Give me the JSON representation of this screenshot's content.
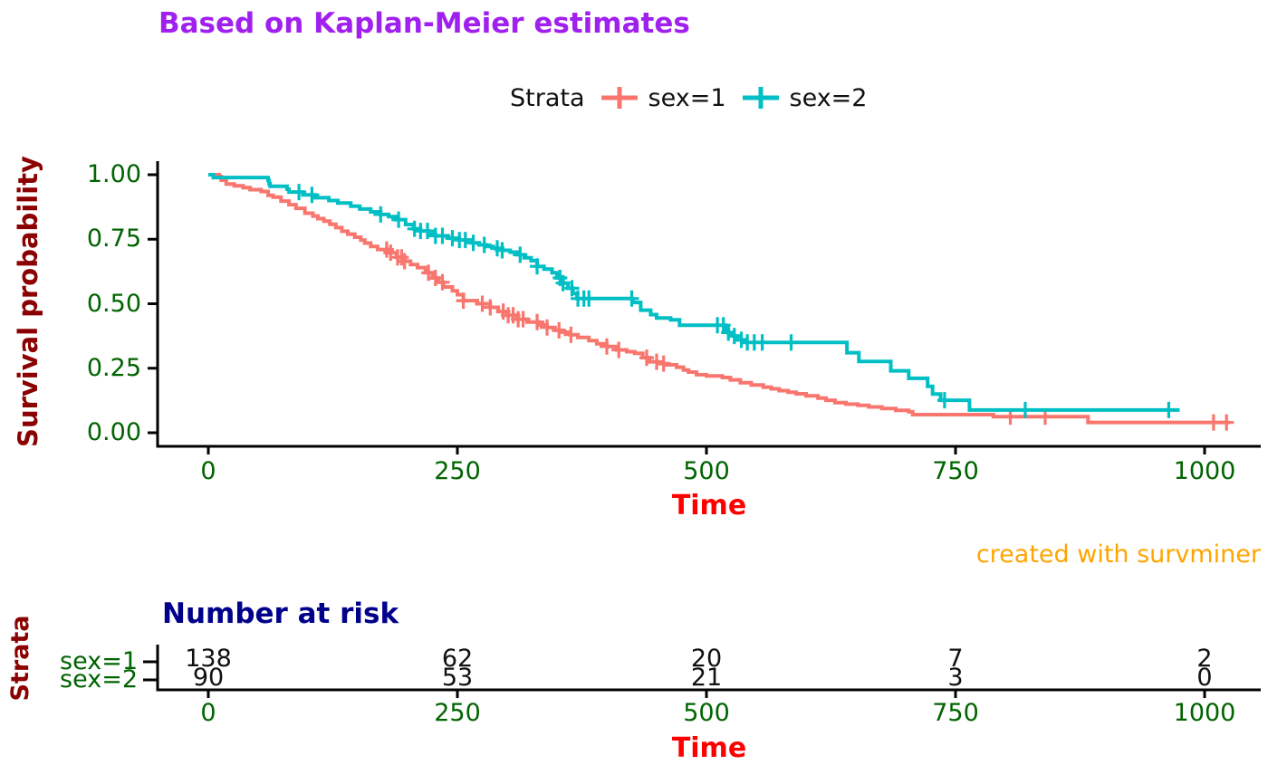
{
  "colors": {
    "sex1": "#F8766D",
    "sex2": "#00BFC4",
    "title": "#A020F0",
    "time_label": "#FF0000",
    "tick_labels": "#006400",
    "survival_label": "#8B0000",
    "risk_title": "#00008B",
    "caption": "#FFA500",
    "axis": "#000000"
  },
  "caption": "created with survminer",
  "chart_data": {
    "type": "line",
    "subtype": "kaplan-meier-step",
    "title": "Based on Kaplan-Meier estimates",
    "xlabel": "Time",
    "ylabel": "Survival probability",
    "legend_title": "Strata",
    "legend_position": "top",
    "xlim": [
      0,
      1055
    ],
    "ylim": [
      0,
      1
    ],
    "x_ticks": [
      "0",
      "250",
      "500",
      "750",
      "1000"
    ],
    "x_tick_values": [
      0,
      250,
      500,
      750,
      1000
    ],
    "y_ticks": [
      "1.00",
      "0.75",
      "0.50",
      "0.25",
      "0.00"
    ],
    "y_tick_values": [
      1.0,
      0.75,
      0.5,
      0.25,
      0.0
    ],
    "grid": false,
    "series": [
      {
        "name": "sex=1",
        "color": "#F8766D",
        "end_time": 1025,
        "steps": [
          [
            0,
            1
          ],
          [
            11,
            0.993
          ],
          [
            13,
            0.979
          ],
          [
            18,
            0.964
          ],
          [
            26,
            0.957
          ],
          [
            35,
            0.95
          ],
          [
            42,
            0.942
          ],
          [
            53,
            0.935
          ],
          [
            60,
            0.92
          ],
          [
            65,
            0.913
          ],
          [
            73,
            0.898
          ],
          [
            81,
            0.884
          ],
          [
            88,
            0.87
          ],
          [
            97,
            0.851
          ],
          [
            105,
            0.84
          ],
          [
            110,
            0.83
          ],
          [
            116,
            0.82
          ],
          [
            122,
            0.808
          ],
          [
            128,
            0.795
          ],
          [
            134,
            0.781
          ],
          [
            140,
            0.77
          ],
          [
            147,
            0.758
          ],
          [
            153,
            0.747
          ],
          [
            157,
            0.735
          ],
          [
            163,
            0.722
          ],
          [
            170,
            0.71
          ],
          [
            180,
            0.698
          ],
          [
            189,
            0.68
          ],
          [
            197,
            0.665
          ],
          [
            203,
            0.652
          ],
          [
            210,
            0.64
          ],
          [
            218,
            0.62
          ],
          [
            225,
            0.6
          ],
          [
            231,
            0.583
          ],
          [
            236,
            0.565
          ],
          [
            245,
            0.55
          ],
          [
            250,
            0.535
          ],
          [
            256,
            0.512
          ],
          [
            270,
            0.5
          ],
          [
            283,
            0.486
          ],
          [
            291,
            0.47
          ],
          [
            300,
            0.455
          ],
          [
            310,
            0.44
          ],
          [
            320,
            0.429
          ],
          [
            332,
            0.418
          ],
          [
            340,
            0.408
          ],
          [
            348,
            0.397
          ],
          [
            355,
            0.39
          ],
          [
            363,
            0.38
          ],
          [
            371,
            0.369
          ],
          [
            382,
            0.357
          ],
          [
            390,
            0.345
          ],
          [
            400,
            0.334
          ],
          [
            410,
            0.321
          ],
          [
            420,
            0.314
          ],
          [
            428,
            0.308
          ],
          [
            436,
            0.291
          ],
          [
            443,
            0.275
          ],
          [
            452,
            0.268
          ],
          [
            460,
            0.263
          ],
          [
            470,
            0.254
          ],
          [
            477,
            0.243
          ],
          [
            482,
            0.235
          ],
          [
            490,
            0.225
          ],
          [
            500,
            0.22
          ],
          [
            516,
            0.214
          ],
          [
            524,
            0.205
          ],
          [
            534,
            0.194
          ],
          [
            545,
            0.185
          ],
          [
            557,
            0.177
          ],
          [
            565,
            0.17
          ],
          [
            573,
            0.163
          ],
          [
            582,
            0.157
          ],
          [
            590,
            0.151
          ],
          [
            600,
            0.143
          ],
          [
            612,
            0.134
          ],
          [
            620,
            0.126
          ],
          [
            629,
            0.117
          ],
          [
            640,
            0.111
          ],
          [
            652,
            0.106
          ],
          [
            663,
            0.1
          ],
          [
            676,
            0.094
          ],
          [
            690,
            0.087
          ],
          [
            703,
            0.081
          ],
          [
            707,
            0.07
          ],
          [
            788,
            0.062
          ],
          [
            883,
            0.04
          ]
        ],
        "censor_times": [
          179,
          183,
          190,
          194,
          197,
          221,
          228,
          235,
          256,
          275,
          283,
          296,
          301,
          306,
          311,
          316,
          330,
          340,
          352,
          364,
          400,
          412,
          440,
          450,
          457,
          805,
          840,
          1009,
          1022
        ]
      },
      {
        "name": "sex=2",
        "color": "#00BFC4",
        "end_time": 975,
        "steps": [
          [
            0,
            1
          ],
          [
            5,
            0.989
          ],
          [
            60,
            0.978
          ],
          [
            61,
            0.966
          ],
          [
            62,
            0.955
          ],
          [
            79,
            0.944
          ],
          [
            81,
            0.933
          ],
          [
            95,
            0.922
          ],
          [
            107,
            0.911
          ],
          [
            121,
            0.9
          ],
          [
            130,
            0.89
          ],
          [
            143,
            0.878
          ],
          [
            152,
            0.867
          ],
          [
            163,
            0.856
          ],
          [
            173,
            0.846
          ],
          [
            181,
            0.838
          ],
          [
            188,
            0.826
          ],
          [
            198,
            0.807
          ],
          [
            206,
            0.79
          ],
          [
            213,
            0.782
          ],
          [
            221,
            0.77
          ],
          [
            228,
            0.763
          ],
          [
            241,
            0.754
          ],
          [
            252,
            0.747
          ],
          [
            264,
            0.736
          ],
          [
            272,
            0.728
          ],
          [
            279,
            0.722
          ],
          [
            286,
            0.715
          ],
          [
            295,
            0.707
          ],
          [
            303,
            0.7
          ],
          [
            310,
            0.69
          ],
          [
            317,
            0.678
          ],
          [
            324,
            0.667
          ],
          [
            330,
            0.645
          ],
          [
            337,
            0.634
          ],
          [
            345,
            0.62
          ],
          [
            350,
            0.6
          ],
          [
            356,
            0.58
          ],
          [
            361,
            0.56
          ],
          [
            366,
            0.54
          ],
          [
            370,
            0.52
          ],
          [
            426,
            0.505
          ],
          [
            434,
            0.475
          ],
          [
            444,
            0.458
          ],
          [
            450,
            0.445
          ],
          [
            464,
            0.438
          ],
          [
            473,
            0.417
          ],
          [
            519,
            0.4
          ],
          [
            522,
            0.388
          ],
          [
            526,
            0.375
          ],
          [
            531,
            0.36
          ],
          [
            538,
            0.35
          ],
          [
            641,
            0.31
          ],
          [
            653,
            0.276
          ],
          [
            685,
            0.24
          ],
          [
            703,
            0.211
          ],
          [
            722,
            0.18
          ],
          [
            727,
            0.15
          ],
          [
            735,
            0.126
          ],
          [
            764,
            0.088
          ]
        ],
        "censor_times": [
          91,
          104,
          173,
          191,
          207,
          213,
          220,
          228,
          235,
          245,
          252,
          258,
          266,
          277,
          290,
          295,
          313,
          330,
          353,
          356,
          365,
          371,
          377,
          382,
          425,
          511,
          517,
          522,
          528,
          535,
          541,
          548,
          556,
          585,
          739,
          820,
          964
        ]
      }
    ]
  },
  "risk_table": {
    "title": "Number at risk",
    "ylabel": "Strata",
    "xlabel": "Time",
    "x_ticks": [
      "0",
      "250",
      "500",
      "750",
      "1000"
    ],
    "rows": [
      {
        "label": "sex=1",
        "counts": [
          138,
          62,
          20,
          7,
          2
        ]
      },
      {
        "label": "sex=2",
        "counts": [
          90,
          53,
          21,
          3,
          0
        ]
      }
    ]
  }
}
